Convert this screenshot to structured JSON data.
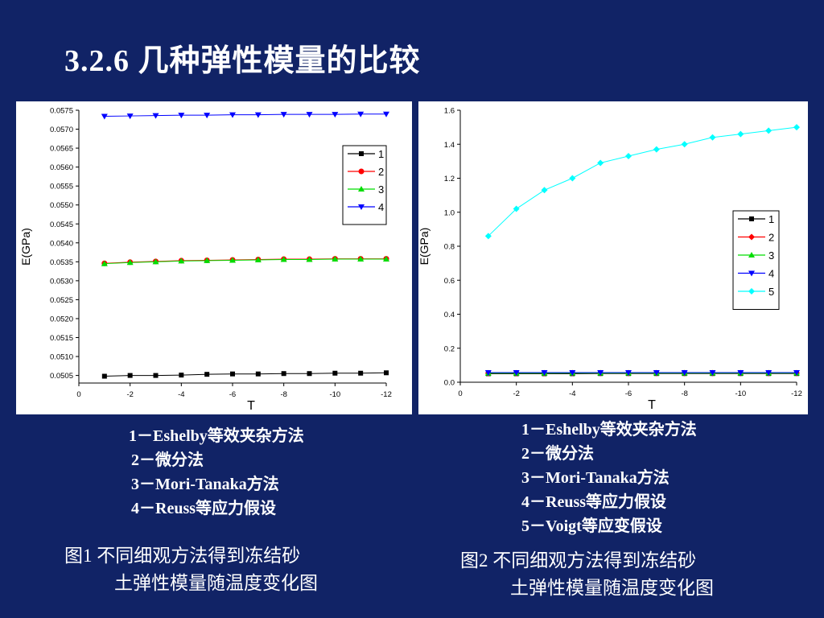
{
  "slide": {
    "title": "3.2.6 几种弹性模量的比较",
    "left_legend": [
      "1－Eshelby等效夹杂方法",
      "2－微分法",
      "3－Mori-Tanaka方法",
      "4－Reuss等应力假设"
    ],
    "right_legend": [
      "1－Eshelby等效夹杂方法",
      "2－微分法",
      "3－Mori-Tanaka方法",
      "4－Reuss等应力假设",
      "5－Voigt等应变假设"
    ],
    "caption1": {
      "line1": "图1  不同细观方法得到冻结砂",
      "line2": "土弹性模量随温度变化图"
    },
    "caption2": {
      "line1": "图2  不同细观方法得到冻结砂",
      "line2": "土弹性模量随温度变化图"
    }
  },
  "chart_data": [
    {
      "type": "line",
      "xlabel": "T",
      "ylabel": "E(GPa)",
      "xlim": [
        0,
        -12
      ],
      "ylim": [
        0.0503,
        0.0575
      ],
      "xticks": [
        0,
        -2,
        -4,
        -6,
        -8,
        -10,
        -12
      ],
      "yticks": [
        "0.0505",
        "0.0510",
        "0.0515",
        "0.0520",
        "0.0525",
        "0.0530",
        "0.0535",
        "0.0540",
        "0.0545",
        "0.0550",
        "0.0555",
        "0.0560",
        "0.0565",
        "0.0570",
        "0.0575"
      ],
      "x": [
        -1,
        -2,
        -3,
        -4,
        -5,
        -6,
        -7,
        -8,
        -9,
        -10,
        -11,
        -12
      ],
      "legend_position": "top-right",
      "series": [
        {
          "name": "1",
          "color": "#000000",
          "marker": "square",
          "values": [
            0.05048,
            0.0505,
            0.0505,
            0.05051,
            0.05053,
            0.05054,
            0.05054,
            0.05055,
            0.05055,
            0.05056,
            0.05056,
            0.05057
          ]
        },
        {
          "name": "2",
          "color": "#ff0000",
          "marker": "circle",
          "values": [
            0.05346,
            0.05349,
            0.05351,
            0.05353,
            0.05354,
            0.05355,
            0.05356,
            0.05357,
            0.05357,
            0.05358,
            0.05358,
            0.05358
          ]
        },
        {
          "name": "3",
          "color": "#00dd00",
          "marker": "triangle-up",
          "values": [
            0.05345,
            0.05348,
            0.0535,
            0.05352,
            0.05353,
            0.05354,
            0.05355,
            0.05356,
            0.05356,
            0.05357,
            0.05357,
            0.05357
          ]
        },
        {
          "name": "4",
          "color": "#0000ff",
          "marker": "triangle-down",
          "values": [
            0.05734,
            0.05735,
            0.05736,
            0.05737,
            0.05737,
            0.05738,
            0.05738,
            0.05739,
            0.05739,
            0.05739,
            0.0574,
            0.0574
          ]
        }
      ]
    },
    {
      "type": "line",
      "xlabel": "T",
      "ylabel": "E(GPa)",
      "xlim": [
        0,
        -12
      ],
      "ylim": [
        0.0,
        1.6
      ],
      "xticks": [
        0,
        -2,
        -4,
        -6,
        -8,
        -10,
        -12
      ],
      "yticks": [
        "0.0",
        "0.2",
        "0.4",
        "0.6",
        "0.8",
        "1.0",
        "1.2",
        "1.4",
        "1.6"
      ],
      "x": [
        -1,
        -2,
        -3,
        -4,
        -5,
        -6,
        -7,
        -8,
        -9,
        -10,
        -11,
        -12
      ],
      "legend_position": "center-right",
      "series": [
        {
          "name": "1",
          "color": "#000000",
          "marker": "square",
          "values": [
            0.05,
            0.05,
            0.05,
            0.05,
            0.051,
            0.051,
            0.051,
            0.051,
            0.051,
            0.051,
            0.051,
            0.051
          ]
        },
        {
          "name": "2",
          "color": "#ff0000",
          "marker": "diamond",
          "values": [
            0.053,
            0.053,
            0.053,
            0.054,
            0.054,
            0.054,
            0.054,
            0.054,
            0.054,
            0.054,
            0.054,
            0.054
          ]
        },
        {
          "name": "3",
          "color": "#00dd00",
          "marker": "triangle-up",
          "values": [
            0.053,
            0.053,
            0.053,
            0.054,
            0.054,
            0.054,
            0.054,
            0.054,
            0.054,
            0.054,
            0.054,
            0.054
          ]
        },
        {
          "name": "4",
          "color": "#0000ff",
          "marker": "triangle-down",
          "values": [
            0.057,
            0.057,
            0.057,
            0.057,
            0.057,
            0.057,
            0.057,
            0.057,
            0.057,
            0.057,
            0.057,
            0.057
          ]
        },
        {
          "name": "5",
          "color": "#00ffff",
          "marker": "diamond",
          "values": [
            0.86,
            1.02,
            1.13,
            1.2,
            1.29,
            1.33,
            1.37,
            1.4,
            1.44,
            1.46,
            1.48,
            1.5
          ]
        }
      ]
    }
  ]
}
